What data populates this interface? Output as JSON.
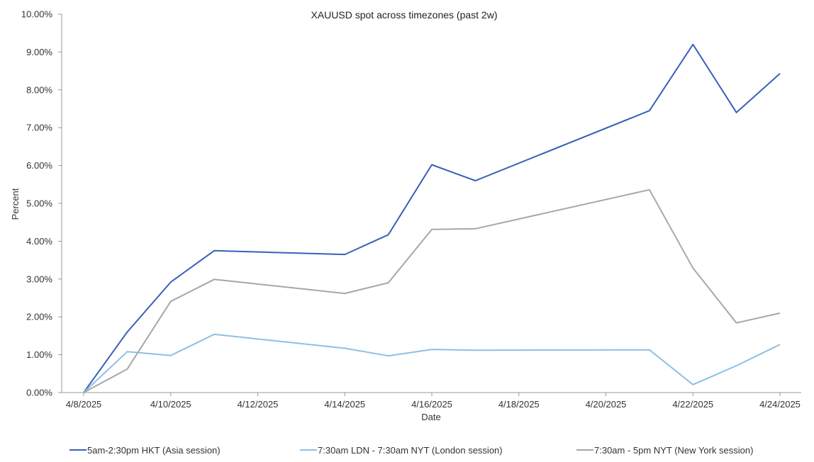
{
  "chart_data": {
    "type": "line",
    "title": "XAUUSD spot across timezones (past 2w)",
    "xlabel": "Date",
    "ylabel": "Percent",
    "x_start": "4/8/2025",
    "x_end": "4/24/2025",
    "x": [
      "4/8/2025",
      "4/9/2025",
      "4/10/2025",
      "4/11/2025",
      "4/14/2025",
      "4/15/2025",
      "4/16/2025",
      "4/17/2025",
      "4/21/2025",
      "4/22/2025",
      "4/23/2025",
      "4/24/2025"
    ],
    "x_ticks": [
      "4/8/2025",
      "4/10/2025",
      "4/12/2025",
      "4/14/2025",
      "4/16/2025",
      "4/18/2025",
      "4/20/2025",
      "4/22/2025",
      "4/24/2025"
    ],
    "ylim": [
      0,
      10
    ],
    "y_ticks": [
      "0.00%",
      "1.00%",
      "2.00%",
      "3.00%",
      "4.00%",
      "5.00%",
      "6.00%",
      "7.00%",
      "8.00%",
      "9.00%",
      "10.00%"
    ],
    "grid": false,
    "legend_position": "bottom",
    "series": [
      {
        "name": "5am-2:30pm HKT (Asia session)",
        "color": "#3a5fb8",
        "values": [
          0.0,
          1.6,
          2.92,
          3.75,
          3.65,
          4.17,
          6.02,
          5.6,
          7.45,
          9.2,
          7.4,
          8.43
        ]
      },
      {
        "name": "7:30am LDN - 7:30am NYT (London session)",
        "color": "#8dc0e6",
        "values": [
          0.0,
          1.08,
          0.98,
          1.54,
          1.17,
          0.97,
          1.14,
          1.12,
          1.13,
          0.21,
          0.71,
          1.27
        ]
      },
      {
        "name": "7:30am - 5pm NYT (New York session)",
        "color": "#a7a7a7",
        "values": [
          0.0,
          0.62,
          2.41,
          2.99,
          2.62,
          2.9,
          4.31,
          4.33,
          5.36,
          3.29,
          1.84,
          2.1
        ]
      }
    ]
  }
}
